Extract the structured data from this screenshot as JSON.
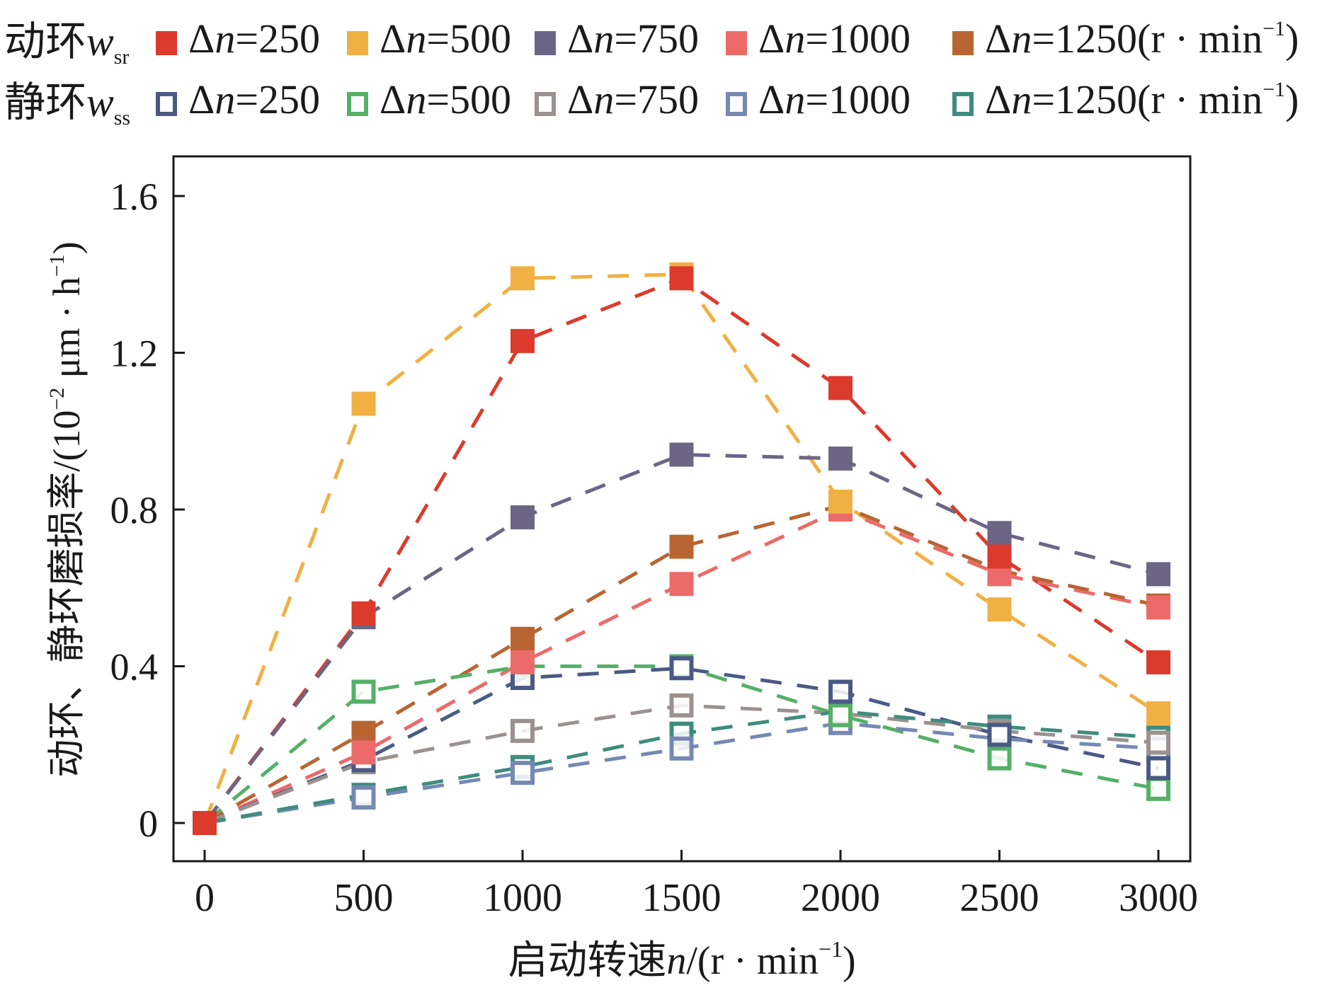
{
  "legend": {
    "rotating_title": "动环",
    "rotating_symbol": "w",
    "rotating_sub": "sr",
    "static_title": "静环",
    "static_symbol": "w",
    "static_sub": "ss",
    "delta_prefix": "Δ",
    "delta_var": "n",
    "unit_suffix": "(r · min",
    "unit_sup": "−1",
    "unit_close": ")",
    "entries": [
      "=250",
      "=500",
      "=750",
      "=1000",
      "=1250"
    ]
  },
  "chart_data": {
    "type": "line",
    "title": "",
    "xlabel": "启动转速n/(r · min⁻¹)",
    "xlabel_parts": {
      "text": "启动转速",
      "var": "n",
      "unit": "/(r · min",
      "sup": "−1",
      "close": ")"
    },
    "ylabel": "动环、静环磨损率/(10⁻² μm · h⁻¹)",
    "ylabel_parts": {
      "text": "动环、静环磨损率/(10",
      "sup1": "−2",
      "mid": " μm · h",
      "sup2": "−1",
      "close": ")"
    },
    "x": [
      0,
      500,
      1000,
      1500,
      2000,
      2500,
      3000
    ],
    "xlim": [
      -100,
      3100
    ],
    "ylim": [
      -0.12,
      1.71
    ],
    "xticks": [
      0,
      500,
      1000,
      1500,
      2000,
      2500,
      3000
    ],
    "xtick_labels": [
      "0",
      "500",
      "1000",
      "1500",
      "2000",
      "2500",
      "3000"
    ],
    "yticks": [
      0,
      0.4,
      0.8,
      1.2,
      1.6
    ],
    "ytick_labels": [
      "0",
      "0.4",
      "0.8",
      "1.2",
      "1.6"
    ],
    "grid": false,
    "legend_position": "top",
    "series": [
      {
        "name": "动环 wsr Δn=250",
        "group": "rotating",
        "marker": "filled-square",
        "color": "#dc3a2c",
        "values": [
          0,
          0.535,
          1.23,
          1.39,
          1.11,
          0.68,
          0.41
        ]
      },
      {
        "name": "动环 wsr Δn=500",
        "group": "rotating",
        "marker": "filled-square",
        "color": "#f0b043",
        "values": [
          0,
          1.07,
          1.39,
          1.4,
          0.82,
          0.545,
          0.28
        ]
      },
      {
        "name": "动环 wsr Δn=750",
        "group": "rotating",
        "marker": "filled-square",
        "color": "#6c6585",
        "values": [
          0,
          0.525,
          0.78,
          0.94,
          0.93,
          0.74,
          0.635
        ]
      },
      {
        "name": "动环 wsr Δn=1000",
        "group": "rotating",
        "marker": "filled-square",
        "color": "#ec6a6a",
        "values": [
          0,
          0.18,
          0.41,
          0.61,
          0.8,
          0.635,
          0.55
        ]
      },
      {
        "name": "动环 wsr Δn=1250",
        "group": "rotating",
        "marker": "filled-square",
        "color": "#b86533",
        "values": [
          0,
          0.23,
          0.47,
          0.705,
          0.81,
          0.645,
          0.555
        ]
      },
      {
        "name": "静环 wss Δn=250",
        "group": "static",
        "marker": "open-square",
        "color": "#4a5a85",
        "values": [
          0,
          0.16,
          0.37,
          0.395,
          0.335,
          0.225,
          0.14
        ]
      },
      {
        "name": "静环 wss Δn=500",
        "group": "static",
        "marker": "open-square",
        "color": "#55b068",
        "values": [
          0,
          0.335,
          0.4,
          0.4,
          0.275,
          0.165,
          0.087
        ]
      },
      {
        "name": "静环 wss Δn=750",
        "group": "static",
        "marker": "open-square",
        "color": "#9b918e",
        "values": [
          0,
          0.155,
          0.235,
          0.3,
          0.28,
          0.235,
          0.205
        ]
      },
      {
        "name": "静环 wss Δn=1000",
        "group": "static",
        "marker": "open-square",
        "color": "#7689b3",
        "values": [
          0,
          0.065,
          0.128,
          0.19,
          0.255,
          0.215,
          0.19
        ]
      },
      {
        "name": "静环 wss Δn=1250",
        "group": "static",
        "marker": "open-square",
        "color": "#3f8c7e",
        "values": [
          0,
          0.072,
          0.143,
          0.228,
          0.285,
          0.246,
          0.218
        ]
      }
    ]
  }
}
